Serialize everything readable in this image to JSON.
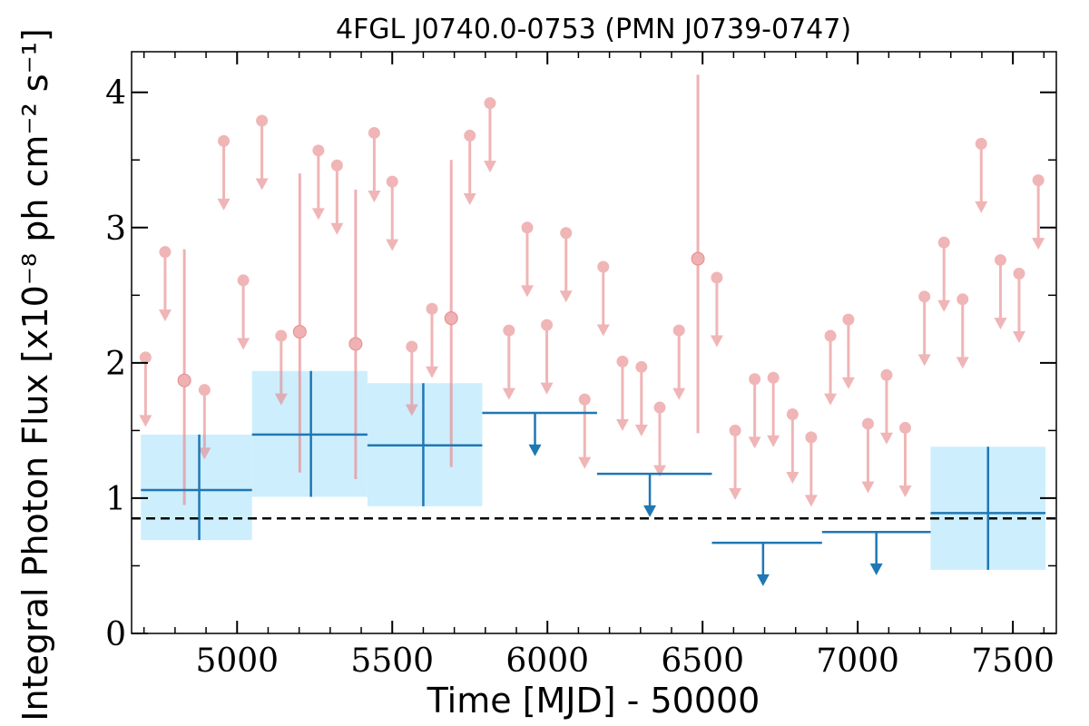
{
  "chart_data": {
    "type": "scatter",
    "title": "4FGL J0740.0-0753 (PMN J0739-0747)",
    "xlabel": "Time [MJD] - 50000",
    "ylabel": "Integral Photon Flux [x10⁻⁸ ph cm⁻² s⁻¹]",
    "xlim": [
      4660,
      7640
    ],
    "ylim": [
      0,
      4.3
    ],
    "xticks": [
      "5000",
      "5500",
      "6000",
      "6500",
      "7000",
      "7500"
    ],
    "xtick_values": [
      5000,
      5500,
      6000,
      6500,
      7000,
      7500
    ],
    "yticks": [
      "0",
      "1",
      "2",
      "3",
      "4"
    ],
    "ytick_values": [
      0,
      1,
      2,
      3,
      4
    ],
    "grid": false,
    "reference_line": {
      "value": 0.85,
      "style": "dashed",
      "color": "#000000"
    },
    "colors": {
      "short": "#e8888b",
      "long": "#1f77b4",
      "band": "#cdeefd"
    },
    "short_bin_upper_limits": [
      {
        "x": 4705,
        "y": 2.04
      },
      {
        "x": 4768,
        "y": 2.82
      },
      {
        "x": 4895,
        "y": 1.8
      },
      {
        "x": 4957,
        "y": 3.64
      },
      {
        "x": 5020,
        "y": 2.61
      },
      {
        "x": 5080,
        "y": 3.79
      },
      {
        "x": 5142,
        "y": 2.2
      },
      {
        "x": 5262,
        "y": 3.57
      },
      {
        "x": 5322,
        "y": 3.46
      },
      {
        "x": 5442,
        "y": 3.7
      },
      {
        "x": 5500,
        "y": 3.34
      },
      {
        "x": 5563,
        "y": 2.12
      },
      {
        "x": 5628,
        "y": 2.4
      },
      {
        "x": 5750,
        "y": 3.68
      },
      {
        "x": 5815,
        "y": 3.92
      },
      {
        "x": 5876,
        "y": 2.24
      },
      {
        "x": 5935,
        "y": 3.0
      },
      {
        "x": 5998,
        "y": 2.28
      },
      {
        "x": 6060,
        "y": 2.96
      },
      {
        "x": 6120,
        "y": 1.73
      },
      {
        "x": 6180,
        "y": 2.71
      },
      {
        "x": 6242,
        "y": 2.01
      },
      {
        "x": 6303,
        "y": 1.97
      },
      {
        "x": 6362,
        "y": 1.67
      },
      {
        "x": 6424,
        "y": 2.24
      },
      {
        "x": 6546,
        "y": 2.63
      },
      {
        "x": 6605,
        "y": 1.5
      },
      {
        "x": 6668,
        "y": 1.88
      },
      {
        "x": 6728,
        "y": 1.89
      },
      {
        "x": 6790,
        "y": 1.62
      },
      {
        "x": 6850,
        "y": 1.45
      },
      {
        "x": 6912,
        "y": 2.2
      },
      {
        "x": 6970,
        "y": 2.32
      },
      {
        "x": 7033,
        "y": 1.55
      },
      {
        "x": 7093,
        "y": 1.91
      },
      {
        "x": 7153,
        "y": 1.52
      },
      {
        "x": 7215,
        "y": 2.49
      },
      {
        "x": 7278,
        "y": 2.89
      },
      {
        "x": 7338,
        "y": 2.47
      },
      {
        "x": 7398,
        "y": 3.62
      },
      {
        "x": 7460,
        "y": 2.76
      },
      {
        "x": 7520,
        "y": 2.66
      },
      {
        "x": 7582,
        "y": 3.35
      }
    ],
    "short_bin_detections": [
      {
        "x": 4830,
        "y": 1.87,
        "ylow": 0.95,
        "yhigh": 2.84
      },
      {
        "x": 5202,
        "y": 2.23,
        "ylow": 1.19,
        "yhigh": 3.4
      },
      {
        "x": 5382,
        "y": 2.14,
        "ylow": 1.14,
        "yhigh": 3.28
      },
      {
        "x": 5690,
        "y": 2.33,
        "ylow": 1.23,
        "yhigh": 3.5
      },
      {
        "x": 6485,
        "y": 2.77,
        "ylow": 1.48,
        "yhigh": 4.13
      }
    ],
    "long_bin_detections": [
      {
        "x": 4878,
        "xlow": 4690,
        "xhigh": 5048,
        "y": 1.06,
        "ylow": 0.69,
        "yhigh": 1.47
      },
      {
        "x": 5238,
        "xlow": 5048,
        "xhigh": 5420,
        "y": 1.47,
        "ylow": 1.01,
        "yhigh": 1.94
      },
      {
        "x": 5600,
        "xlow": 5420,
        "xhigh": 5790,
        "y": 1.39,
        "ylow": 0.94,
        "yhigh": 1.85
      },
      {
        "x": 7420,
        "xlow": 7235,
        "xhigh": 7605,
        "y": 0.89,
        "ylow": 0.47,
        "yhigh": 1.38
      }
    ],
    "long_bin_upper_limits": [
      {
        "x": 5960,
        "xlow": 5790,
        "xhigh": 6160,
        "y": 1.63
      },
      {
        "x": 6330,
        "xlow": 6160,
        "xhigh": 6530,
        "y": 1.18
      },
      {
        "x": 6695,
        "xlow": 6530,
        "xhigh": 6885,
        "y": 0.67
      },
      {
        "x": 7060,
        "xlow": 6885,
        "xhigh": 7235,
        "y": 0.75
      }
    ]
  }
}
